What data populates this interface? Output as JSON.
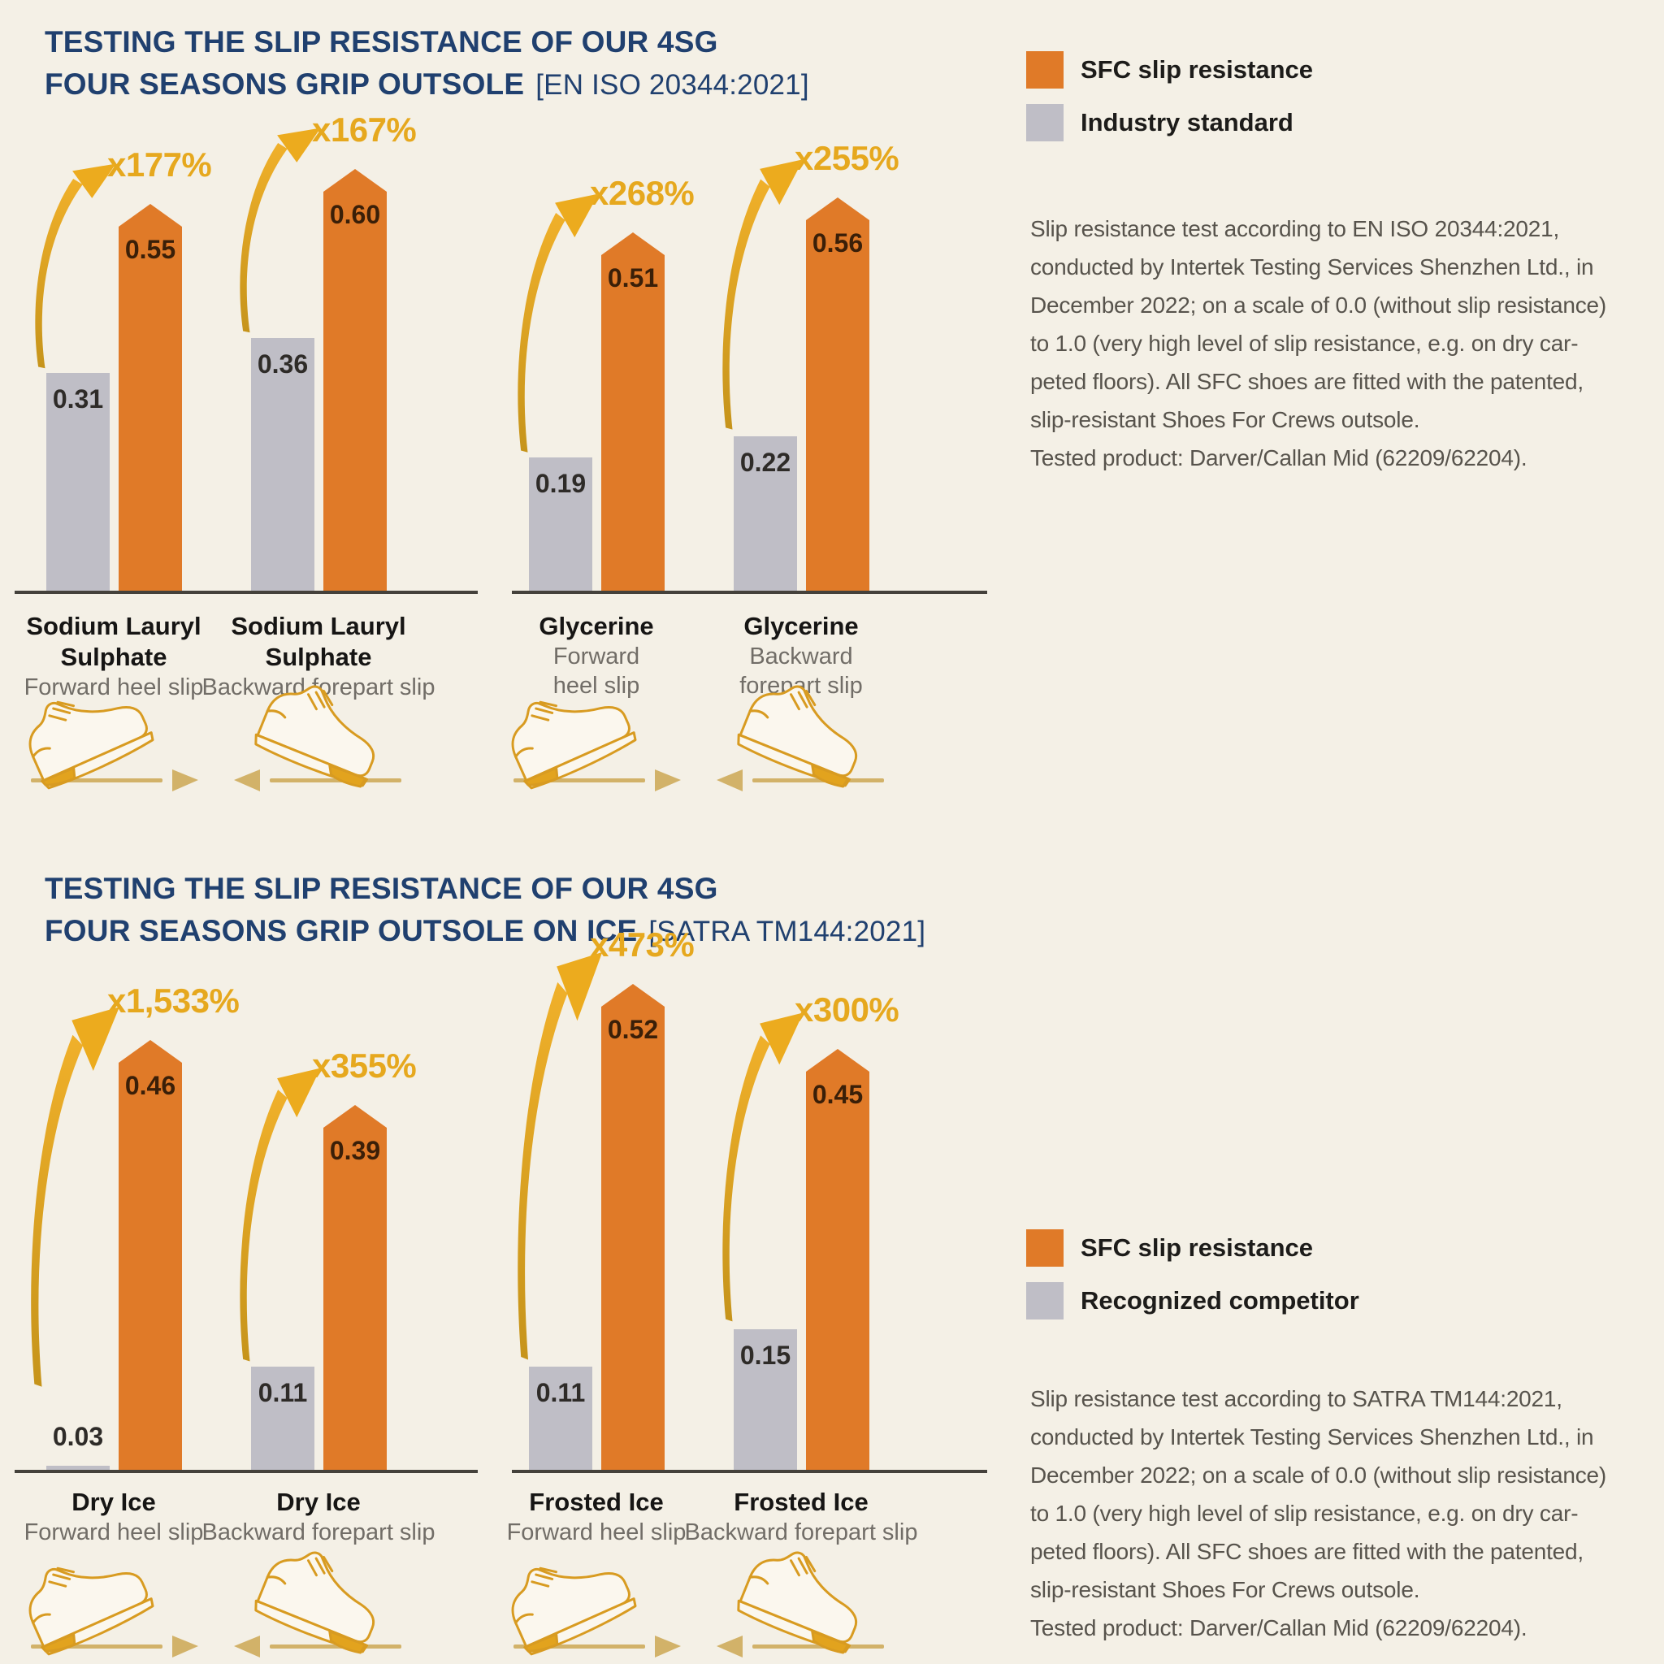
{
  "colors": {
    "background": "#F4F0E6",
    "sfc_bar": "#E07A28",
    "baseline_bar": "#BFBEC6",
    "accent_gold": "#E6A81E",
    "title_navy": "#20406F"
  },
  "chart_data": [
    {
      "type": "bar",
      "title_line1": "TESTING THE SLIP RESISTANCE OF OUR 4SG",
      "title_line2": "FOUR SEASONS GRIP OUTSOLE",
      "standard": "[EN ISO 20344:2021]",
      "scale": [
        0.0,
        1.0
      ],
      "series": [
        "SFC slip resistance",
        "Industry standard"
      ],
      "legend": {
        "sfc": "SFC slip resistance",
        "baseline": "Industry standard"
      },
      "groups": [
        {
          "name_lines": [
            "Sodium Lauryl",
            "Sulphate"
          ],
          "test_lines": [
            "Forward heel slip"
          ],
          "baseline_value": 0.31,
          "baseline_label": "0.31",
          "sfc_value": 0.55,
          "sfc_label": "0.55",
          "gain": "x177%"
        },
        {
          "name_lines": [
            "Sodium Lauryl",
            "Sulphate"
          ],
          "test_lines": [
            "Backward forepart slip"
          ],
          "baseline_value": 0.36,
          "baseline_label": "0.36",
          "sfc_value": 0.6,
          "sfc_label": "0.60",
          "gain": "x167%"
        },
        {
          "name_lines": [
            "Glycerine"
          ],
          "test_lines": [
            "Forward",
            "heel slip"
          ],
          "baseline_value": 0.19,
          "baseline_label": "0.19",
          "sfc_value": 0.51,
          "sfc_label": "0.51",
          "gain": "x268%"
        },
        {
          "name_lines": [
            "Glycerine"
          ],
          "test_lines": [
            "Backward",
            "forepart slip"
          ],
          "baseline_value": 0.22,
          "baseline_label": "0.22",
          "sfc_value": 0.56,
          "sfc_label": "0.56",
          "gain": "x255%"
        }
      ],
      "note_lines": [
        "Slip resistance test according to EN ISO 20344:2021,",
        "conducted by Intertek Testing Services Shenzhen Ltd., in",
        "December 2022; on a scale of 0.0 (without slip resistance)",
        "to 1.0 (very high level of slip resistance, e.g. on dry car-",
        "peted floors).  All SFC shoes are fitted with the patented,",
        "slip-resistant Shoes For Crews outsole.",
        "Tested product: Darver/Callan Mid (62209/62204)."
      ]
    },
    {
      "type": "bar",
      "title_line1": "TESTING THE SLIP RESISTANCE OF OUR 4SG",
      "title_line2": "FOUR SEASONS GRIP OUTSOLE ON ICE",
      "standard": "[SATRA TM144:2021]",
      "scale": [
        0.0,
        1.0
      ],
      "series": [
        "SFC slip resistance",
        "Recognized competitor"
      ],
      "legend": {
        "sfc": "SFC slip resistance",
        "baseline": "Recognized competitor"
      },
      "groups": [
        {
          "name_lines": [
            "Dry Ice"
          ],
          "test_lines": [
            "Forward heel slip"
          ],
          "baseline_value": 0.03,
          "baseline_label": "0.03",
          "sfc_value": 0.46,
          "sfc_label": "0.46",
          "gain": "x1,533%"
        },
        {
          "name_lines": [
            "Dry Ice"
          ],
          "test_lines": [
            "Backward forepart slip"
          ],
          "baseline_value": 0.11,
          "baseline_label": "0.11",
          "sfc_value": 0.39,
          "sfc_label": "0.39",
          "gain": "x355%"
        },
        {
          "name_lines": [
            "Frosted Ice"
          ],
          "test_lines": [
            "Forward heel slip"
          ],
          "baseline_value": 0.11,
          "baseline_label": "0.11",
          "sfc_value": 0.52,
          "sfc_label": "0.52",
          "gain": "x473%"
        },
        {
          "name_lines": [
            "Frosted Ice"
          ],
          "test_lines": [
            "Backward forepart slip"
          ],
          "baseline_value": 0.15,
          "baseline_label": "0.15",
          "sfc_value": 0.45,
          "sfc_label": "0.45",
          "gain": "x300%"
        }
      ],
      "note_lines": [
        "Slip resistance test according to SATRA TM144:2021,",
        "conducted by Intertek Testing Services Shenzhen Ltd., in",
        "December 2022; on a scale of 0.0 (without slip resistance)",
        "to 1.0 (very high level of slip resistance, e.g. on dry car-",
        "peted floors).  All SFC shoes are fitted with the patented,",
        "slip-resistant Shoes For Crews outsole.",
        "Tested product: Darver/Callan Mid (62209/62204)."
      ]
    }
  ]
}
